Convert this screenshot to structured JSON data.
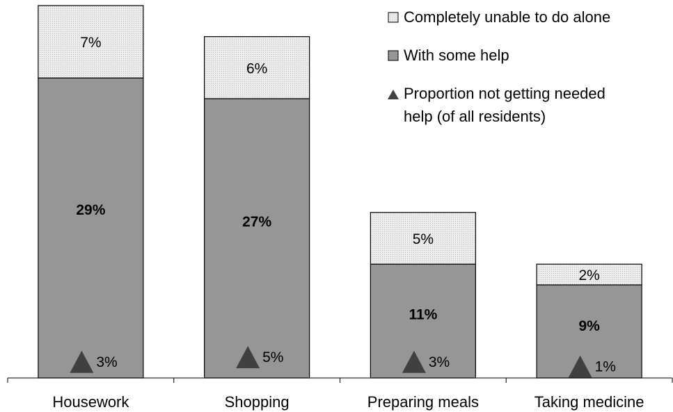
{
  "chart_data": {
    "type": "bar",
    "stacked": true,
    "categories": [
      "Housework",
      "Shopping",
      "Preparing meals",
      "Taking medicine"
    ],
    "series": [
      {
        "name": "With some help",
        "values": [
          29,
          27,
          11,
          9
        ],
        "value_labels": [
          "29%",
          "27%",
          "11%",
          "9%"
        ],
        "color": "#969696"
      },
      {
        "name": "Completely unable to do alone",
        "values": [
          7,
          6,
          5,
          2
        ],
        "value_labels": [
          "7%",
          "6%",
          "5%",
          "2%"
        ],
        "color": "#e6e6e6"
      }
    ],
    "markers": {
      "name": "Proportion not getting needed help (of all residents)",
      "shape": "triangle",
      "values": [
        3,
        5,
        3,
        1
      ],
      "value_labels": [
        "3%",
        "5%",
        "3%",
        "1%"
      ],
      "color": "#404040"
    },
    "ylim": [
      0,
      36
    ],
    "grid": false,
    "legend": "top-right"
  },
  "legend": {
    "item1": "Completely unable to do alone",
    "item2": "With some help",
    "item3_line1": "Proportion not getting needed",
    "item3_line2": "help (of all residents)"
  }
}
